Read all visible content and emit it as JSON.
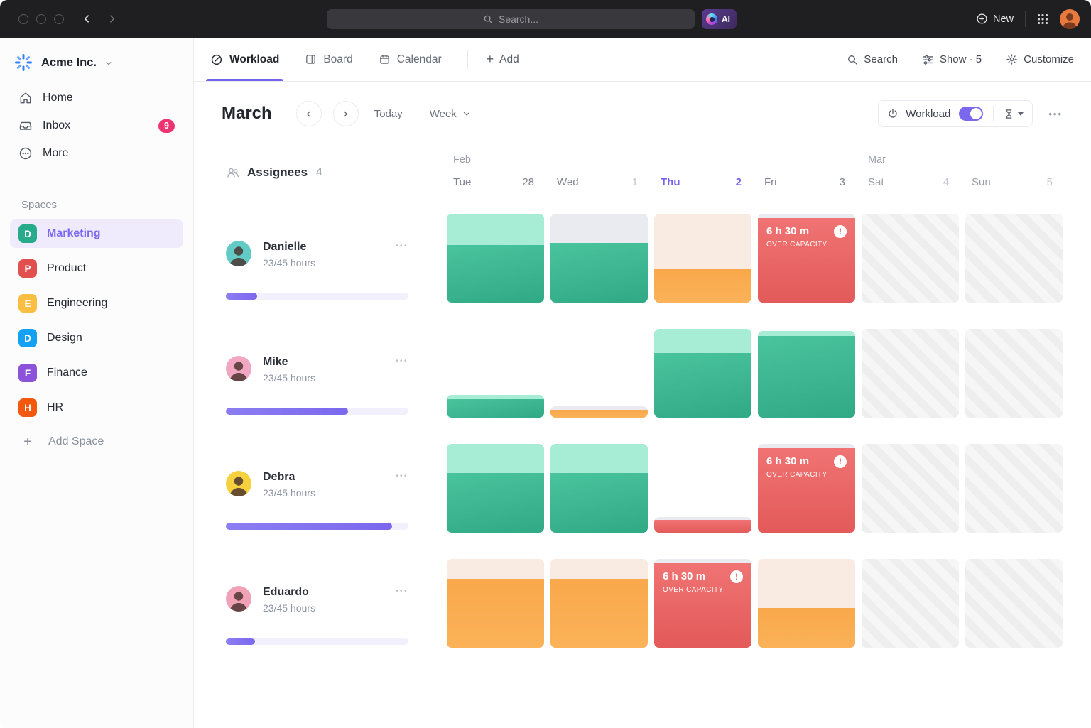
{
  "topbar": {
    "search_placeholder": "Search...",
    "ai_label": "AI",
    "new_label": "New"
  },
  "sidebar": {
    "workspace_name": "Acme Inc.",
    "nav": [
      {
        "label": "Home",
        "icon": "home-icon"
      },
      {
        "label": "Inbox",
        "icon": "inbox-icon",
        "badge": "9"
      },
      {
        "label": "More",
        "icon": "more-icon"
      }
    ],
    "spaces_title": "Spaces",
    "spaces": [
      {
        "label": "Marketing",
        "initial": "D",
        "color": "#27ab8a",
        "active": true
      },
      {
        "label": "Product",
        "initial": "P",
        "color": "#e14f4f"
      },
      {
        "label": "Engineering",
        "initial": "E",
        "color": "#f9be42"
      },
      {
        "label": "Design",
        "initial": "D",
        "color": "#14a0f4"
      },
      {
        "label": "Finance",
        "initial": "F",
        "color": "#8c52d9"
      },
      {
        "label": "HR",
        "initial": "H",
        "color": "#f2590f"
      }
    ],
    "add_space_label": "Add Space"
  },
  "view_header": {
    "tabs": [
      {
        "label": "Workload",
        "active": true
      },
      {
        "label": "Board"
      },
      {
        "label": "Calendar"
      }
    ],
    "add_label": "Add",
    "search_label": "Search",
    "show_label": "Show · 5",
    "customize_label": "Customize"
  },
  "toolbar": {
    "month_title": "March",
    "today_label": "Today",
    "range_label": "Week",
    "workload_toggle_label": "Workload",
    "workload_toggle_on": true
  },
  "board": {
    "assignees_label": "Assignees",
    "assignees_count": "4",
    "accent_color": "#7b68ee",
    "days": [
      {
        "month": "Feb",
        "name": "Tue",
        "num": "28"
      },
      {
        "name": "Wed",
        "num": "1",
        "num_dim": true
      },
      {
        "name": "Thu",
        "num": "2",
        "active": true
      },
      {
        "name": "Fri",
        "num": "3"
      },
      {
        "month": "Mar",
        "name": "Sat",
        "num": "4",
        "weekend": true,
        "num_dim": true
      },
      {
        "name": "Sun",
        "num": "5",
        "weekend": true,
        "num_dim": true
      }
    ],
    "over_capacity": {
      "hours": "6 h 30 m",
      "label": "OVER CAPACITY"
    },
    "palette": {
      "green": "#3bbb92",
      "orange": "#f9a94c",
      "red": "#ec6161",
      "mint": "#a7ecd4",
      "gray": "#e9ebf0",
      "peach": "#f9ebe2"
    },
    "rows": [
      {
        "name": "Danielle",
        "hours": "23/45 hours",
        "avatar_color": "#62cbc6",
        "progress_pct": 17,
        "cells": [
          {
            "type": "bar",
            "bar": 100,
            "cap": 35,
            "cap_color": "mint",
            "body_color": "green"
          },
          {
            "type": "bar",
            "bar": 100,
            "cap": 33,
            "cap_color": "gray",
            "body_color": "green"
          },
          {
            "type": "bar",
            "bar": 100,
            "cap": 62,
            "cap_color": "peach",
            "body_color": "orange"
          },
          {
            "type": "over"
          },
          {
            "type": "off"
          },
          {
            "type": "off"
          }
        ]
      },
      {
        "name": "Mike",
        "hours": "23/45 hours",
        "avatar_color": "#f1a6c2",
        "progress_pct": 67,
        "cells": [
          {
            "type": "bar",
            "bar": 26,
            "cap": 5,
            "cap_color": "mint",
            "body_color": "green"
          },
          {
            "type": "bar",
            "bar": 13,
            "cap": 4,
            "cap_color": "gray",
            "body_color": "orange"
          },
          {
            "type": "bar",
            "bar": 100,
            "cap": 27,
            "cap_color": "mint",
            "body_color": "green"
          },
          {
            "type": "bar",
            "bar": 98,
            "cap": 6,
            "cap_color": "mint",
            "body_color": "green"
          },
          {
            "type": "off"
          },
          {
            "type": "off"
          }
        ]
      },
      {
        "name": "Debra",
        "hours": "23/45 hours",
        "avatar_color": "#f5d13d",
        "progress_pct": 91,
        "cells": [
          {
            "type": "bar",
            "bar": 100,
            "cap": 33,
            "cap_color": "mint",
            "body_color": "green"
          },
          {
            "type": "bar",
            "bar": 100,
            "cap": 33,
            "cap_color": "mint",
            "body_color": "green"
          },
          {
            "type": "bar",
            "bar": 18,
            "cap": 4,
            "cap_color": "gray",
            "body_color": "red"
          },
          {
            "type": "over"
          },
          {
            "type": "off"
          },
          {
            "type": "off"
          }
        ]
      },
      {
        "name": "Eduardo",
        "hours": "23/45 hours",
        "avatar_color": "#f2a2b6",
        "progress_pct": 16,
        "cells": [
          {
            "type": "bar",
            "bar": 100,
            "cap": 22,
            "cap_color": "peach",
            "body_color": "orange"
          },
          {
            "type": "bar",
            "bar": 100,
            "cap": 22,
            "cap_color": "peach",
            "body_color": "orange"
          },
          {
            "type": "over"
          },
          {
            "type": "bar",
            "bar": 100,
            "cap": 55,
            "cap_color": "peach",
            "body_color": "orange"
          },
          {
            "type": "off"
          },
          {
            "type": "off"
          }
        ]
      }
    ]
  }
}
